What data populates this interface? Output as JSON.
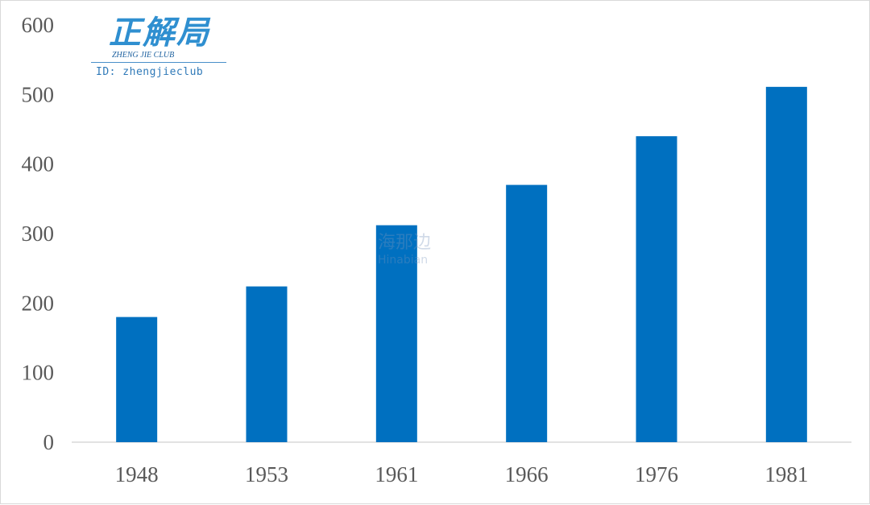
{
  "chart_data": {
    "type": "bar",
    "categories": [
      "1948",
      "1953",
      "1961",
      "1966",
      "1976",
      "1981"
    ],
    "values": [
      180,
      224,
      312,
      370,
      440,
      511
    ],
    "ylim": [
      0,
      600
    ],
    "yticks": [
      "0",
      "100",
      "200",
      "300",
      "400",
      "500",
      "600"
    ],
    "grid": false,
    "bar_color": "#0070C0"
  },
  "logo": {
    "chinese": "正解局",
    "english": "ZHENG JIE CLUB",
    "id_text": "ID: zhengjieclub",
    "color": "#2f8fd0"
  },
  "watermark": {
    "chinese": "海那边",
    "english": "Hinabian"
  }
}
